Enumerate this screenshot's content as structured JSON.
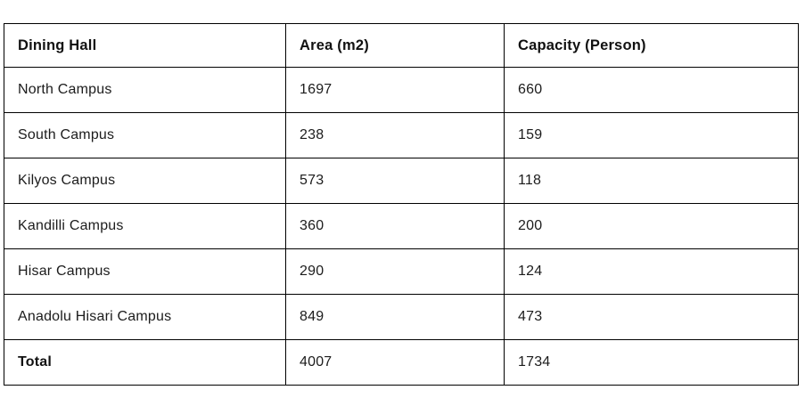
{
  "chart_data": {
    "type": "table",
    "title": "",
    "columns": [
      "Dining Hall",
      "Area (m2)",
      "Capacity (Person)"
    ],
    "rows": [
      [
        "North Campus",
        1697,
        660
      ],
      [
        "South Campus",
        238,
        159
      ],
      [
        "Kilyos Campus",
        573,
        118
      ],
      [
        "Kandilli Campus",
        360,
        200
      ],
      [
        "Hisar Campus",
        290,
        124
      ],
      [
        "Anadolu Hisari Campus",
        849,
        473
      ],
      [
        "Total",
        4007,
        1734
      ]
    ],
    "total_row_index": 6,
    "layout": {
      "grid": "full-borders",
      "header_bold": true,
      "total_label_bold": true
    }
  },
  "colors": {
    "page_background": "#ffffff",
    "cell_background": "#ffffff",
    "border": "#000000",
    "text": "#1c1c1c"
  }
}
